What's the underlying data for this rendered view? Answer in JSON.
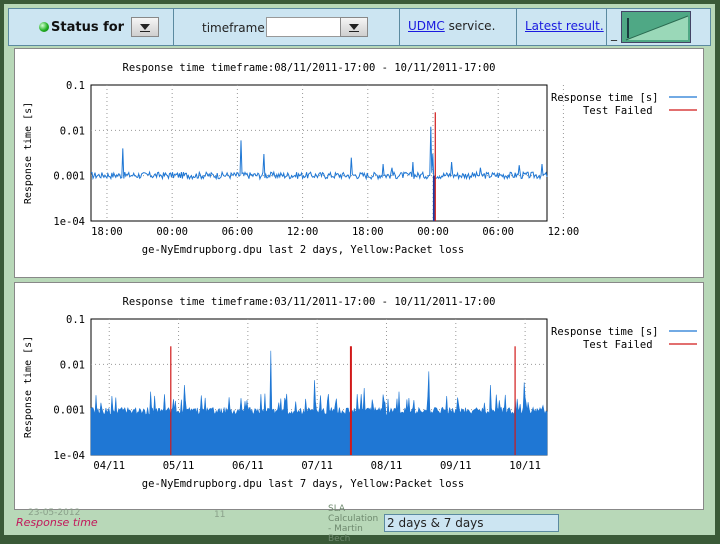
{
  "topbar": {
    "status_label": "Status for",
    "timeframe_label": "timeframe",
    "udmc_link": "UDMC",
    "service_suffix": " service.",
    "latest_result": "Latest result.",
    "thumb_separator": "_"
  },
  "colors": {
    "response": "#1f77d4",
    "failed": "#d11919",
    "topbar_bg": "#cce5f2",
    "frame_bg": "#b8d8b8"
  },
  "chart_data": [
    {
      "type": "line",
      "title": "Response time timeframe:08/11/2011-17:00 - 10/11/2011-17:00",
      "xlabel": "ge-NyEmdrupborg.dpu last 2 days, Yellow:Packet loss",
      "ylabel": "Response time [s]",
      "yscale": "log",
      "ylim": [
        0.0001,
        0.1
      ],
      "y_ticks": [
        "0.1",
        "0.01",
        "0.001",
        "1e-04"
      ],
      "x_ticks": [
        "18:00",
        "00:00",
        "06:00",
        "12:00",
        "18:00",
        "00:00",
        "06:00",
        "12:00"
      ],
      "legend": [
        "Response time [s]",
        "Test Failed"
      ],
      "legend_position": "right",
      "grid": true,
      "baseline": 0.001,
      "spikes": [
        {
          "x": 0.07,
          "y": 0.004
        },
        {
          "x": 0.33,
          "y": 0.006
        },
        {
          "x": 0.38,
          "y": 0.003
        },
        {
          "x": 0.57,
          "y": 0.0025
        },
        {
          "x": 0.64,
          "y": 0.0018
        },
        {
          "x": 0.66,
          "y": 0.0015
        },
        {
          "x": 0.705,
          "y": 0.002
        },
        {
          "x": 0.745,
          "y": 0.012
        },
        {
          "x": 0.75,
          "y": 0.003
        },
        {
          "x": 0.79,
          "y": 0.002
        },
        {
          "x": 0.855,
          "y": 0.0015
        },
        {
          "x": 0.94,
          "y": 0.0017
        },
        {
          "x": 0.99,
          "y": 0.0018
        }
      ],
      "failed": [
        {
          "x": 0.755,
          "y": 0.025
        }
      ],
      "dropouts": [
        {
          "x": 0.752
        }
      ]
    },
    {
      "type": "area",
      "title": "Response time timeframe:03/11/2011-17:00 - 10/11/2011-17:00",
      "xlabel": "ge-NyEmdrupborg.dpu last 7 days, Yellow:Packet loss",
      "ylabel": "Response time [s]",
      "yscale": "log",
      "ylim": [
        0.0001,
        0.1
      ],
      "y_ticks": [
        "0.1",
        "0.01",
        "0.001",
        "1e-04"
      ],
      "x_ticks": [
        "04/11",
        "05/11",
        "06/11",
        "07/11",
        "08/11",
        "09/11",
        "10/11"
      ],
      "legend": [
        "Response time [s]",
        "Test Failed"
      ],
      "legend_position": "right",
      "grid": true,
      "baseline": 0.0009,
      "spikes": [
        {
          "x": 0.045,
          "y": 0.002
        },
        {
          "x": 0.13,
          "y": 0.0025
        },
        {
          "x": 0.205,
          "y": 0.0035
        },
        {
          "x": 0.33,
          "y": 0.0018
        },
        {
          "x": 0.395,
          "y": 0.02
        },
        {
          "x": 0.49,
          "y": 0.0045
        },
        {
          "x": 0.52,
          "y": 0.0022
        },
        {
          "x": 0.6,
          "y": 0.003
        },
        {
          "x": 0.675,
          "y": 0.0025
        },
        {
          "x": 0.74,
          "y": 0.007
        },
        {
          "x": 0.78,
          "y": 0.002
        },
        {
          "x": 0.875,
          "y": 0.0035
        },
        {
          "x": 0.95,
          "y": 0.004
        }
      ],
      "failed": [
        {
          "x": 0.175,
          "y": 0.025
        },
        {
          "x": 0.57,
          "y": 0.025
        },
        {
          "x": 0.93,
          "y": 0.025
        }
      ]
    }
  ],
  "footer": {
    "topic": "Response time",
    "date": "23-05-2012",
    "page": "11",
    "author": "SLA Calculation - Martin Bech",
    "note": "2 days & 7 days"
  }
}
